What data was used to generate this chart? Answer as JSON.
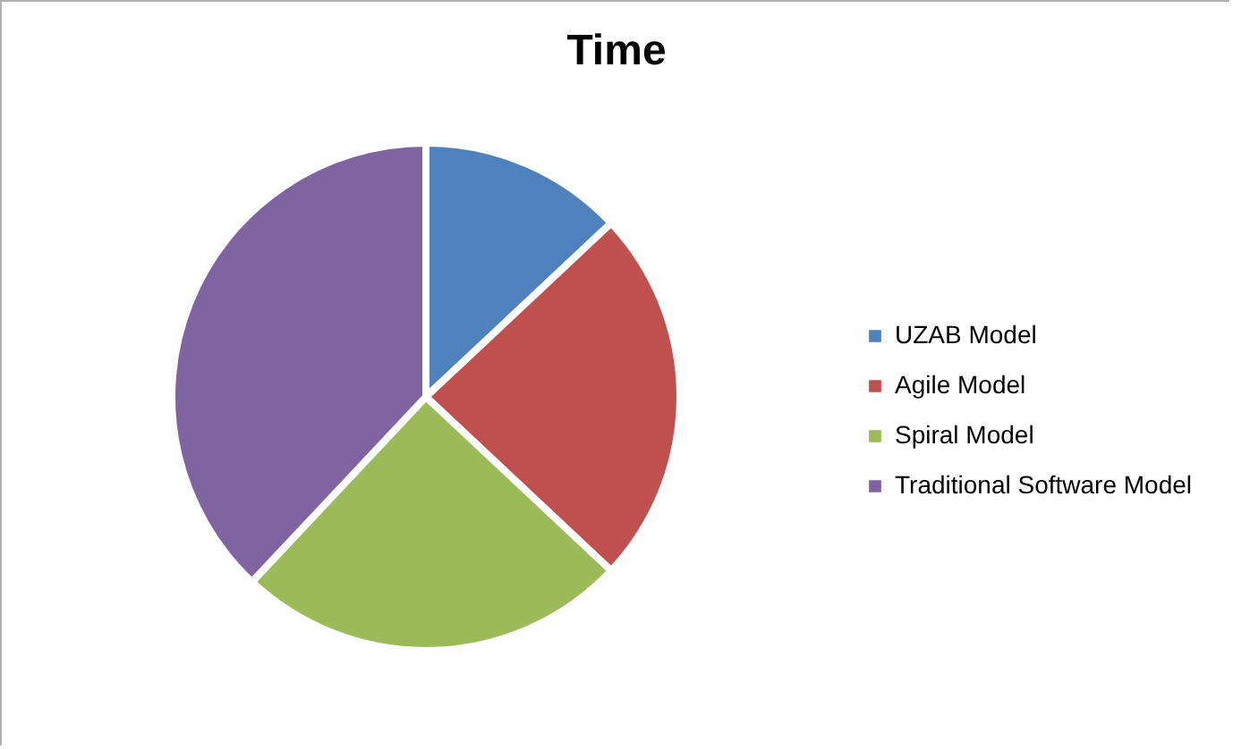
{
  "chart_data": {
    "type": "pie",
    "title": "Time",
    "categories": [
      "UZAB Model",
      "Agile Model",
      "Spiral Model",
      "Traditional Software Model"
    ],
    "values": [
      13,
      24,
      25,
      38
    ],
    "colors": [
      "#4f81bd",
      "#c0504d",
      "#9bbb59",
      "#8064a2"
    ],
    "legend": "right"
  }
}
